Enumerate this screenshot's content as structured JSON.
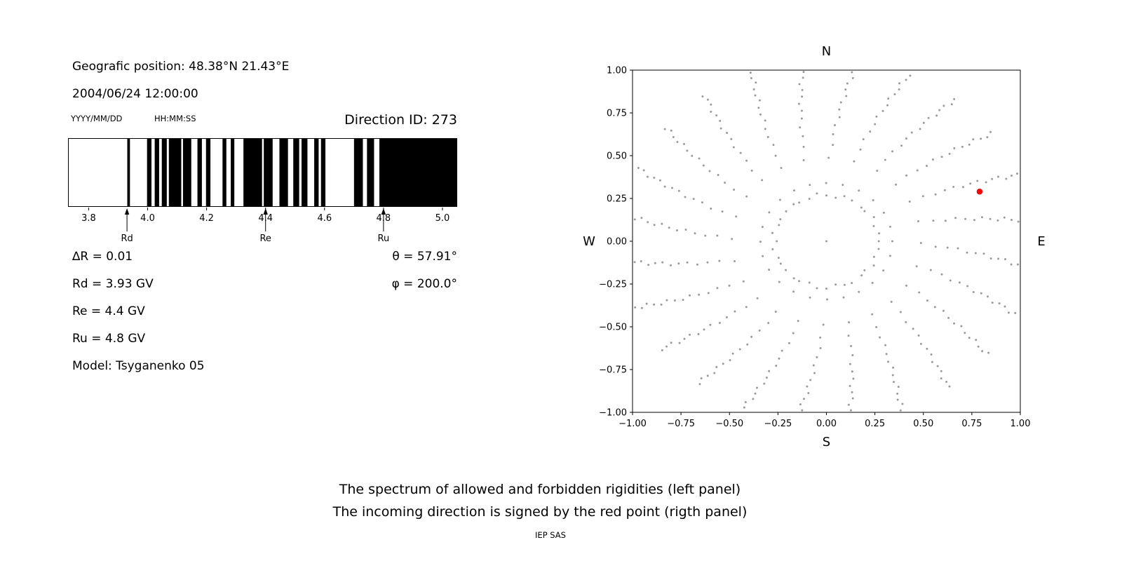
{
  "left_panel": {
    "position_label": "Geografic position: 48.38°N 21.43°E",
    "datetime": "2004/06/24 12:00:00",
    "date_format": "YYYY/MM/DD",
    "time_format": "HH:MM:SS",
    "direction_id": "Direction ID: 273",
    "stats": {
      "delta_r": "∆R = 0.01",
      "rd": "Rd = 3.93 GV",
      "re": "Re = 4.4 GV",
      "ru": "Ru = 4.8 GV",
      "model": "Model: Tsyganenko 05",
      "theta": "θ = 57.91°",
      "phi": "φ = 200.0°"
    }
  },
  "caption": {
    "line1": "The spectrum of allowed and forbidden rigidities (left panel)",
    "line2": "The incoming direction is signed by the red point (rigth panel)",
    "footer": "IEP SAS"
  },
  "chart_data": [
    {
      "type": "barcode",
      "title": "Spectrum of allowed (white) and forbidden (black) rigidities",
      "x_unit": "GV",
      "xlim": [
        3.73,
        5.05
      ],
      "xticks": [
        3.8,
        4.0,
        4.2,
        4.4,
        4.6,
        4.8,
        5.0
      ],
      "bar_color": "#000000",
      "forbidden_bands": [
        [
          3.931,
          3.94
        ],
        [
          3.998,
          4.013
        ],
        [
          4.024,
          4.039
        ],
        [
          4.048,
          4.065
        ],
        [
          4.072,
          4.114
        ],
        [
          4.12,
          4.148
        ],
        [
          4.169,
          4.184
        ],
        [
          4.198,
          4.213
        ],
        [
          4.254,
          4.267
        ],
        [
          4.282,
          4.294
        ],
        [
          4.325,
          4.388
        ],
        [
          4.394,
          4.424
        ],
        [
          4.447,
          4.476
        ],
        [
          4.494,
          4.514
        ],
        [
          4.522,
          4.542
        ],
        [
          4.565,
          4.58
        ],
        [
          4.588,
          4.603
        ],
        [
          4.7,
          4.73
        ],
        [
          4.744,
          4.768
        ],
        [
          4.786,
          5.05
        ]
      ],
      "markers": [
        {
          "label": "Rd",
          "x": 3.93
        },
        {
          "label": "Re",
          "x": 4.4
        },
        {
          "label": "Ru",
          "x": 4.8
        }
      ]
    },
    {
      "type": "scatter",
      "title": "Asymptotic directions; incoming direction shown as red point",
      "xlim": [
        -1,
        1
      ],
      "ylim": [
        -1,
        1
      ],
      "xticks": [
        -1.0,
        -0.75,
        -0.5,
        -0.25,
        0.0,
        0.25,
        0.5,
        0.75,
        1.0
      ],
      "yticks": [
        -1.0,
        -0.75,
        -0.5,
        -0.25,
        0.0,
        0.25,
        0.5,
        0.75,
        1.0
      ],
      "compass_labels": {
        "top": "N",
        "bottom": "S",
        "left": "W",
        "right": "E"
      },
      "dot_color": "#9b9b9b",
      "red_point": {
        "x": 0.79,
        "y": 0.29,
        "color": "#ff0000"
      },
      "spokes": {
        "count": 24,
        "start_angle_deg": 0,
        "step_deg": 15,
        "r_min": 0.34,
        "r_max": 1.06,
        "dots_per_spoke": 15,
        "density_power": 0.6,
        "curve_deg_per_unit_r": -12
      },
      "inner_ring": {
        "radius": 0.27,
        "dots": 36
      },
      "center_dot": true
    }
  ]
}
